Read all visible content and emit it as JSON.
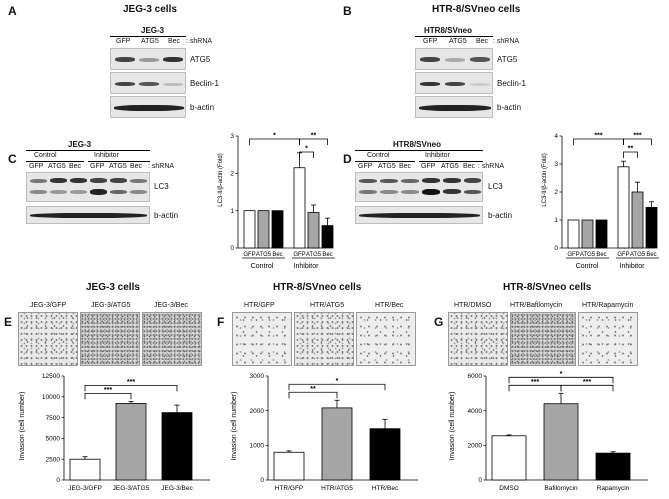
{
  "panels": {
    "A": {
      "letter": "A",
      "title": "JEG-3 cells",
      "cell_line": "JEG-3",
      "lanes": [
        "GFP",
        "ATG5",
        "Bec"
      ],
      "lane_suffix": ": shRNA",
      "rows": [
        "ATG5",
        "Beclin-1",
        "b-actin"
      ]
    },
    "B": {
      "letter": "B",
      "title": "HTR-8/SVneo cells",
      "cell_line": "HTR8/SVneo",
      "lanes": [
        "GFP",
        "ATG5",
        "Bec"
      ],
      "lane_suffix": ": shRNA",
      "rows": [
        "ATG5",
        "Beclin-1",
        "b-actin"
      ]
    },
    "C": {
      "letter": "C",
      "cell_line": "JEG-3",
      "group1": "Control",
      "group2": "Inhibitor",
      "lanes": [
        "GFP",
        "ATG5",
        "Bec",
        "GFP",
        "ATG5",
        "Bec"
      ],
      "lane_suffix": ": shRNA",
      "rows": [
        "LC3",
        "b-actin"
      ]
    },
    "D": {
      "letter": "D",
      "cell_line": "HTR8/SVneo",
      "group1": "Control",
      "group2": "Inhibitor",
      "lanes": [
        "GFP",
        "ATG5",
        "Bec",
        "GFP",
        "ATG5",
        "Bec"
      ],
      "lane_suffix": ": shRNA",
      "rows": [
        "LC3",
        "b-actin"
      ]
    },
    "E": {
      "letter": "E",
      "title": "JEG-3 cells",
      "images": [
        "JEG-3/GFP",
        "JEG-3/ATG5",
        "JEG-3/Bec"
      ]
    },
    "F": {
      "letter": "F",
      "title": "HTR-8/SVneo cells",
      "images": [
        "HTR/GFP",
        "HTR/ATG5",
        "HTR/Bec"
      ]
    },
    "G": {
      "letter": "G",
      "title": "HTR-8/SVneo cells",
      "images": [
        "HTR/DMSO",
        "HTR/Bafilomycin",
        "HTR/Rapamycin"
      ]
    }
  },
  "chart_data": [
    {
      "id": "C",
      "type": "bar",
      "ylabel": "LC3-II/β-actin (Fold)",
      "ylim": [
        0,
        3
      ],
      "yticks": [
        0,
        1,
        2,
        3
      ],
      "categories": [
        "GFP",
        "ATG5",
        "Bec",
        "GFP",
        "ATG5",
        "Bec"
      ],
      "groups": [
        "Control",
        "Inhibitor"
      ],
      "values": [
        1.0,
        1.0,
        1.0,
        2.15,
        0.95,
        0.6
      ],
      "errors": [
        0,
        0,
        0,
        0.4,
        0.2,
        0.2
      ],
      "colors": [
        "#ffffff",
        "#a6a6a6",
        "#000000",
        "#ffffff",
        "#a6a6a6",
        "#000000"
      ],
      "sig": [
        {
          "a": 0,
          "b": 3,
          "label": "*"
        },
        {
          "a": 3,
          "b": 4,
          "label": "*"
        },
        {
          "a": 3,
          "b": 5,
          "label": "**"
        }
      ]
    },
    {
      "id": "D",
      "type": "bar",
      "ylabel": "LC3-II/β-actin (Fold)",
      "ylim": [
        0,
        4
      ],
      "yticks": [
        0,
        1,
        2,
        3,
        4
      ],
      "categories": [
        "GFP",
        "ATG5",
        "Bec",
        "GFP",
        "ATG5",
        "Bec"
      ],
      "groups": [
        "Control",
        "Inhibitor"
      ],
      "values": [
        1.0,
        1.0,
        1.0,
        2.9,
        2.0,
        1.45
      ],
      "errors": [
        0,
        0,
        0,
        0.2,
        0.35,
        0.2
      ],
      "colors": [
        "#ffffff",
        "#a6a6a6",
        "#000000",
        "#ffffff",
        "#a6a6a6",
        "#000000"
      ],
      "sig": [
        {
          "a": 0,
          "b": 3,
          "label": "***"
        },
        {
          "a": 3,
          "b": 4,
          "label": "**"
        },
        {
          "a": 3,
          "b": 5,
          "label": "***"
        }
      ]
    },
    {
      "id": "E",
      "type": "bar",
      "ylabel": "Invasion (cell number)",
      "ylim": [
        0,
        12500
      ],
      "yticks": [
        0,
        2500,
        5000,
        7500,
        10000,
        12500
      ],
      "categories": [
        "JEG-3/GFP",
        "JEG-3/ATG5",
        "JEG-3/Bec"
      ],
      "values": [
        2500,
        9200,
        8100
      ],
      "errors": [
        300,
        250,
        900
      ],
      "colors": [
        "#ffffff",
        "#a6a6a6",
        "#000000"
      ],
      "sig": [
        {
          "a": 0,
          "b": 1,
          "label": "***"
        },
        {
          "a": 0,
          "b": 2,
          "label": "***"
        }
      ]
    },
    {
      "id": "F",
      "type": "bar",
      "ylabel": "Invasion (cell number)",
      "ylim": [
        0,
        3000
      ],
      "yticks": [
        0,
        1000,
        2000,
        3000
      ],
      "categories": [
        "HTR/GFP",
        "HTR/ATG5",
        "HTR/Bec"
      ],
      "values": [
        800,
        2080,
        1480
      ],
      "errors": [
        40,
        220,
        270
      ],
      "colors": [
        "#ffffff",
        "#a6a6a6",
        "#000000"
      ],
      "sig": [
        {
          "a": 0,
          "b": 1,
          "label": "**"
        },
        {
          "a": 0,
          "b": 2,
          "label": "*"
        }
      ]
    },
    {
      "id": "G",
      "type": "bar",
      "ylabel": "Invasion (cell number)",
      "ylim": [
        0,
        6000
      ],
      "yticks": [
        0,
        2000,
        4000,
        6000
      ],
      "categories": [
        "DMSO",
        "Bafilomycin",
        "Rapamycin"
      ],
      "values": [
        2550,
        4400,
        1550
      ],
      "errors": [
        50,
        600,
        80
      ],
      "colors": [
        "#ffffff",
        "#a6a6a6",
        "#000000"
      ],
      "sig": [
        {
          "a": 0,
          "b": 1,
          "label": "***"
        },
        {
          "a": 1,
          "b": 2,
          "label": "***"
        },
        {
          "a": 0,
          "b": 2,
          "label": "*"
        }
      ]
    }
  ]
}
